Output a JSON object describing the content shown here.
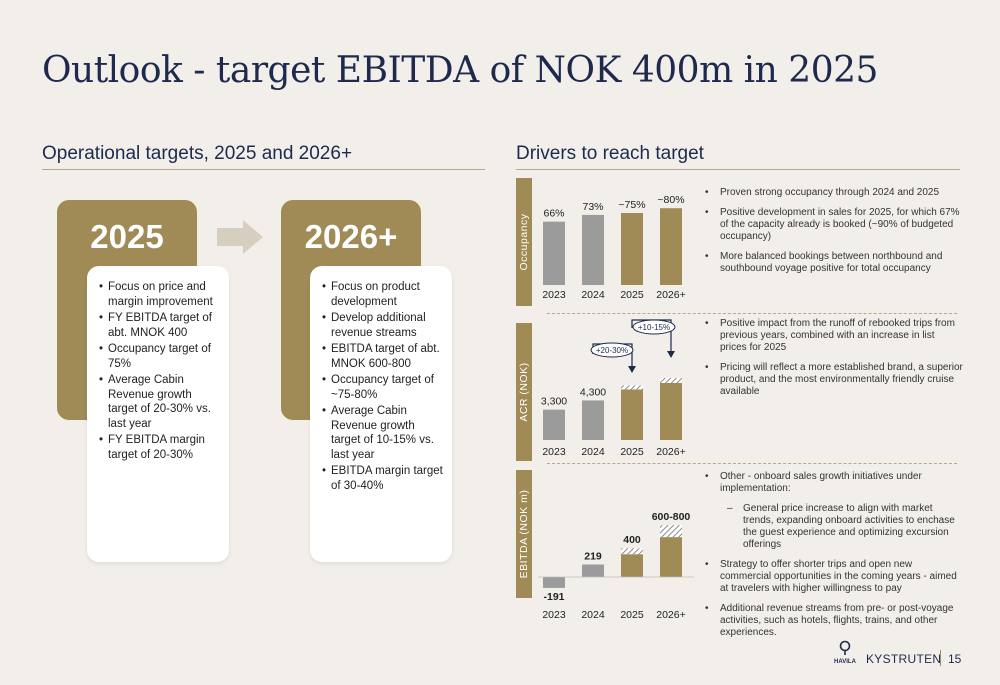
{
  "title": "Outlook - target EBITDA of NOK 400m in 2025",
  "left_section": {
    "heading": "Operational targets, 2025 and 2026+",
    "cards": [
      {
        "year": "2025",
        "items": [
          "Focus on price and margin improvement",
          "FY EBITDA target of abt. MNOK 400",
          "Occupancy target of 75%",
          "Average Cabin Revenue growth target of 20-30% vs. last year",
          "FY EBITDA margin target of 20-30%"
        ]
      },
      {
        "year": "2026+",
        "items": [
          "Focus on product development",
          "Develop additional revenue streams",
          "EBITDA target of abt. MNOK 600-800",
          "Occupancy target of ~75-80%",
          "Average Cabin Revenue growth target of 10-15% vs. last year",
          "EBITDA margin target of 30-40%"
        ]
      }
    ]
  },
  "right_section": {
    "heading": "Drivers to reach target",
    "occupancy": {
      "axis_label": "Occupancy",
      "bullets": [
        "Proven strong occupancy through 2024 and 2025",
        "Positive development in sales for 2025, for which 67% of the capacity already is booked (~90% of budgeted occupancy)",
        "More balanced bookings between northbound and southbound voyage positive for total occupancy"
      ]
    },
    "acr": {
      "axis_label": "ACR (NOK)",
      "bullets": [
        "Positive impact from the runoff of rebooked trips from previous years, combined with an increase in list prices for 2025",
        "Pricing will reflect a more established brand, a superior product, and the most environmentally friendly cruise available"
      ]
    },
    "ebitda": {
      "axis_label": "EBITDA (NOK m)",
      "bullets": [
        {
          "text": "Other - onboard sales growth initiatives under implementation:",
          "sub": false
        },
        {
          "text": "General price increase to align with market trends, expanding onboard activities to enchase the guest experience and optimizing excursion offerings",
          "sub": true
        },
        {
          "text": "Strategy to offer shorter trips and open new commercial opportunities in the coming years - aimed at travelers with higher willingness to pay",
          "sub": false
        },
        {
          "text": "Additional revenue streams from pre- or post-voyage activities, such as hotels, flights, trains, and other experiences.",
          "sub": false
        }
      ]
    }
  },
  "chart_data": [
    {
      "type": "bar",
      "categories": [
        "2023",
        "2024",
        "2025",
        "2026+"
      ],
      "values": [
        66,
        73,
        75,
        80
      ],
      "data_labels": [
        "66%",
        "73%",
        "~75%",
        "~80%"
      ],
      "ylabel": "Occupancy",
      "ylim": [
        0,
        100
      ],
      "colors": [
        "#9b9b9b",
        "#9b9b9b",
        "#a08b57",
        "#a08b57"
      ]
    },
    {
      "type": "bar",
      "categories": [
        "2023",
        "2024",
        "2025",
        "2026+"
      ],
      "values": [
        3300,
        4300,
        5500,
        6200
      ],
      "data_labels": [
        "3,300",
        "4,300",
        "",
        ""
      ],
      "ylabel": "ACR (NOK)",
      "ylim": [
        0,
        9000
      ],
      "annotations": [
        "+20-30%",
        "+10-15%"
      ],
      "colors": [
        "#9b9b9b",
        "#9b9b9b",
        "#a08b57",
        "#a08b57"
      ]
    },
    {
      "type": "bar",
      "categories": [
        "2023",
        "2024",
        "2025",
        "2026+"
      ],
      "values": [
        -191,
        219,
        400,
        700
      ],
      "data_labels": [
        "-191",
        "219",
        "400",
        "600-800"
      ],
      "ylabel": "EBITDA (NOK m)",
      "ylim": [
        -300,
        1200
      ],
      "colors": [
        "#9b9b9b",
        "#9b9b9b",
        "#a08b57",
        "#a08b57"
      ]
    }
  ],
  "footer": {
    "logo_text": "HAVILA",
    "brand": "KYSTRUTEN",
    "page": "15"
  },
  "colors": {
    "gold": "#a08b57",
    "grey": "#9b9b9b",
    "navy": "#1d2a4d",
    "background": "#f2efeb"
  }
}
